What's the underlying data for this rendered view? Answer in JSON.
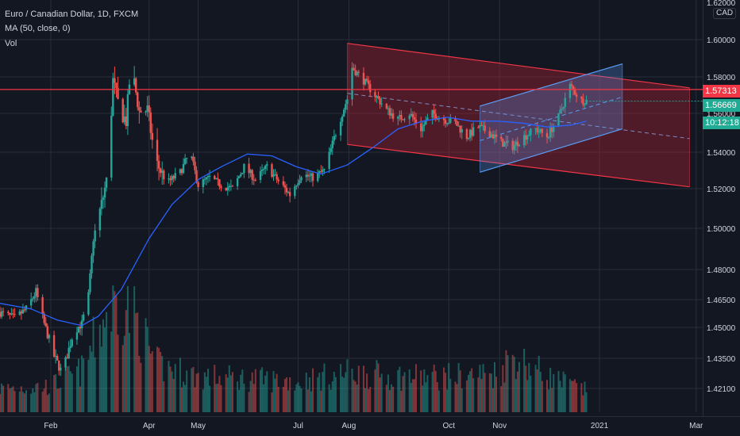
{
  "legend": {
    "title": "Euro / Canadian Dollar, 1D, FXCM",
    "ma": "MA (50, close, 0)",
    "vol": "Vol"
  },
  "price_axis": {
    "currency": "CAD",
    "top_cut_label": "1.62000",
    "ticks": [
      "1.60000",
      "1.58000",
      "1.56000",
      "1.54000",
      "1.52000",
      "1.50000",
      "1.48000",
      "1.46500",
      "1.45000",
      "1.43500",
      "1.42100"
    ],
    "current_price": "1.56669",
    "countdown": "10:12:18",
    "line_price": "1.57313"
  },
  "time_axis": {
    "labels": [
      "Feb",
      "Apr",
      "May",
      "Jul",
      "Aug",
      "Oct",
      "Nov",
      "2021",
      "Mar"
    ]
  },
  "colors": {
    "background": "#131722",
    "grid": "#2a2e39",
    "up": "#26a69a",
    "down": "#ef5350",
    "ma": "#2962ff",
    "hline": "#f23645",
    "channel_red": "#f23645",
    "channel_blue": "#5b9cf6",
    "axis_text": "#d1d4dc"
  },
  "chart_data": {
    "type": "candlestick",
    "symbol": "EUR/CAD",
    "interval": "1D",
    "ylim": [
      1.41,
      1.62
    ],
    "x_range": [
      "2020-01-01",
      "2021-03-05"
    ],
    "horizontal_line": 1.5731,
    "moving_average_period": 50,
    "price_path": [
      [
        "2020-01-01",
        1.458
      ],
      [
        "2020-01-10",
        1.455
      ],
      [
        "2020-01-17",
        1.46
      ],
      [
        "2020-01-23",
        1.469
      ],
      [
        "2020-01-28",
        1.452
      ],
      [
        "2020-02-03",
        1.436
      ],
      [
        "2020-02-08",
        1.428
      ],
      [
        "2020-02-15",
        1.448
      ],
      [
        "2020-02-20",
        1.452
      ],
      [
        "2020-02-24",
        1.467
      ],
      [
        "2020-02-27",
        1.495
      ],
      [
        "2020-03-03",
        1.512
      ],
      [
        "2020-03-07",
        1.528
      ],
      [
        "2020-03-10",
        1.578
      ],
      [
        "2020-03-14",
        1.562
      ],
      [
        "2020-03-18",
        1.556
      ],
      [
        "2020-03-21",
        1.587
      ],
      [
        "2020-03-26",
        1.561
      ],
      [
        "2020-03-31",
        1.562
      ],
      [
        "2020-04-05",
        1.535
      ],
      [
        "2020-04-12",
        1.523
      ],
      [
        "2020-04-20",
        1.529
      ],
      [
        "2020-04-26",
        1.54
      ],
      [
        "2020-05-01",
        1.522
      ],
      [
        "2020-05-08",
        1.526
      ],
      [
        "2020-05-15",
        1.522
      ],
      [
        "2020-05-22",
        1.52
      ],
      [
        "2020-05-29",
        1.532
      ],
      [
        "2020-06-05",
        1.525
      ],
      [
        "2020-06-12",
        1.532
      ],
      [
        "2020-06-19",
        1.524
      ],
      [
        "2020-06-26",
        1.517
      ],
      [
        "2020-07-03",
        1.528
      ],
      [
        "2020-07-10",
        1.526
      ],
      [
        "2020-07-17",
        1.53
      ],
      [
        "2020-07-24",
        1.55
      ],
      [
        "2020-07-31",
        1.568
      ],
      [
        "2020-08-03",
        1.585
      ],
      [
        "2020-08-10",
        1.578
      ],
      [
        "2020-08-17",
        1.57
      ],
      [
        "2020-08-24",
        1.562
      ],
      [
        "2020-08-31",
        1.557
      ],
      [
        "2020-09-07",
        1.56
      ],
      [
        "2020-09-14",
        1.552
      ],
      [
        "2020-09-21",
        1.56
      ],
      [
        "2020-09-28",
        1.557
      ],
      [
        "2020-10-05",
        1.555
      ],
      [
        "2020-10-12",
        1.548
      ],
      [
        "2020-10-19",
        1.553
      ],
      [
        "2020-10-26",
        1.55
      ],
      [
        "2020-11-02",
        1.545
      ],
      [
        "2020-11-09",
        1.543
      ],
      [
        "2020-11-16",
        1.548
      ],
      [
        "2020-11-23",
        1.552
      ],
      [
        "2020-11-30",
        1.548
      ],
      [
        "2020-12-07",
        1.558
      ],
      [
        "2020-12-14",
        1.575
      ],
      [
        "2020-12-21",
        1.567
      ],
      [
        "2020-12-24",
        1.567
      ]
    ],
    "ma_path": [
      [
        "2020-01-01",
        1.463
      ],
      [
        "2020-01-20",
        1.46
      ],
      [
        "2020-02-05",
        1.454
      ],
      [
        "2020-02-20",
        1.451
      ],
      [
        "2020-03-01",
        1.456
      ],
      [
        "2020-03-15",
        1.47
      ],
      [
        "2020-04-01",
        1.495
      ],
      [
        "2020-04-15",
        1.512
      ],
      [
        "2020-05-01",
        1.525
      ],
      [
        "2020-05-15",
        1.532
      ],
      [
        "2020-05-31",
        1.539
      ],
      [
        "2020-06-15",
        1.538
      ],
      [
        "2020-06-30",
        1.532
      ],
      [
        "2020-07-15",
        1.528
      ],
      [
        "2020-07-31",
        1.533
      ],
      [
        "2020-08-15",
        1.542
      ],
      [
        "2020-08-31",
        1.552
      ],
      [
        "2020-09-15",
        1.556
      ],
      [
        "2020-09-30",
        1.558
      ],
      [
        "2020-10-15",
        1.556
      ],
      [
        "2020-10-31",
        1.556
      ],
      [
        "2020-11-15",
        1.555
      ],
      [
        "2020-11-30",
        1.553
      ],
      [
        "2020-12-15",
        1.554
      ],
      [
        "2020-12-24",
        1.556
      ]
    ],
    "channels": [
      {
        "color": "red",
        "upper": [
          [
            "2020-07-31",
            1.598
          ],
          [
            "2021-02-25",
            1.574
          ]
        ],
        "lower": [
          [
            "2020-07-31",
            1.544
          ],
          [
            "2021-02-25",
            1.521
          ]
        ],
        "mid": [
          [
            "2020-07-31",
            1.571
          ],
          [
            "2021-02-25",
            1.547
          ]
        ]
      },
      {
        "color": "blue",
        "upper": [
          [
            "2020-10-20",
            1.564
          ],
          [
            "2021-01-15",
            1.587
          ]
        ],
        "lower": [
          [
            "2020-10-20",
            1.529
          ],
          [
            "2021-01-15",
            1.552
          ]
        ],
        "mid": [
          [
            "2020-10-20",
            1.546
          ],
          [
            "2021-01-15",
            1.569
          ]
        ]
      }
    ],
    "volume_profile": [
      [
        "2020-01-01",
        0.2
      ],
      [
        "2020-02-01",
        0.22
      ],
      [
        "2020-02-20",
        0.35
      ],
      [
        "2020-03-05",
        0.8
      ],
      [
        "2020-03-15",
        0.95
      ],
      [
        "2020-03-25",
        0.75
      ],
      [
        "2020-04-05",
        0.4
      ],
      [
        "2020-05-01",
        0.3
      ],
      [
        "2020-06-01",
        0.28
      ],
      [
        "2020-07-01",
        0.26
      ],
      [
        "2020-08-01",
        0.33
      ],
      [
        "2020-09-01",
        0.3
      ],
      [
        "2020-10-01",
        0.3
      ],
      [
        "2020-11-01",
        0.33
      ],
      [
        "2020-11-08",
        0.48
      ],
      [
        "2020-12-01",
        0.3
      ],
      [
        "2020-12-24",
        0.18
      ]
    ]
  }
}
